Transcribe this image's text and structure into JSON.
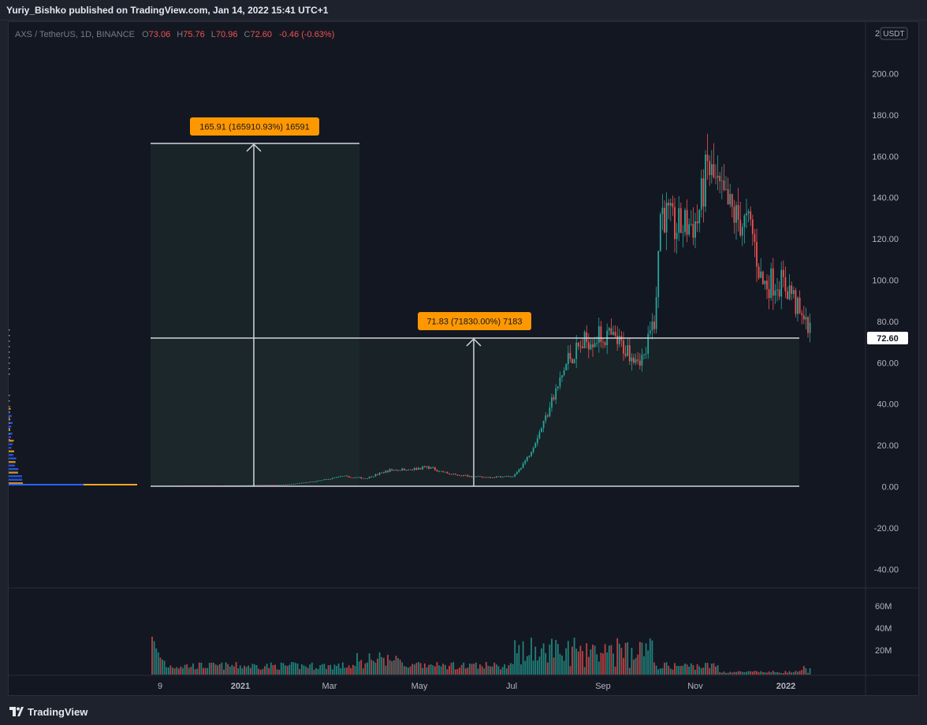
{
  "header": {
    "publish_line": "Yuriy_Bishko published on TradingView.com, Jan 14, 2022 15:41 UTC+1"
  },
  "legend": {
    "symbol": "AXS / TetherUS, 1D, BINANCE",
    "open_label": "O",
    "open": "73.06",
    "high_label": "H",
    "high": "75.76",
    "low_label": "L",
    "low": "70.96",
    "close_label": "C",
    "close": "72.60",
    "change": "-0.46 (-0.63%)"
  },
  "price_axis": {
    "currency_badge": "USDT",
    "top_clip": "2",
    "ticks": [
      "200.00",
      "180.00",
      "160.00",
      "140.00",
      "120.00",
      "100.00",
      "80.00",
      "60.00",
      "40.00",
      "20.00",
      "0.00",
      "-20.00",
      "-40.00"
    ],
    "last_price_label": "72.60"
  },
  "volume_axis": {
    "ticks": [
      "60M",
      "40M",
      "20M"
    ]
  },
  "time_axis": {
    "ticks": [
      "9",
      "2021",
      "Mar",
      "May",
      "Jul",
      "Sep",
      "Nov",
      "2022"
    ]
  },
  "measure_tools": [
    {
      "label": "165.91 (165910.93%) 16591",
      "color": "#ff9800"
    },
    {
      "label": "71.83 (71830.00%) 7183",
      "color": "#ff9800"
    }
  ],
  "colors": {
    "up": "#26a69a",
    "down": "#ef5350",
    "grid": "#2a2e39",
    "measure_line": "#d1d4dc",
    "label_bg": "#ff9800"
  },
  "chart_data": {
    "type": "candlestick",
    "symbol": "AXS / TetherUS",
    "interval": "1D",
    "exchange": "BINANCE",
    "ylim": [
      -48,
      208
    ],
    "y_ticks": [
      200,
      180,
      160,
      140,
      120,
      100,
      80,
      60,
      40,
      20,
      0,
      -20,
      -40
    ],
    "last": {
      "open": 73.06,
      "high": 75.76,
      "low": 70.96,
      "close": 72.6,
      "change": -0.46,
      "change_pct": -0.63
    },
    "price_path": [
      [
        "2020-11-04",
        0.3
      ],
      [
        "2020-12-01",
        0.5
      ],
      [
        "2021-01-01",
        0.6
      ],
      [
        "2021-02-01",
        1.0
      ],
      [
        "2021-02-20",
        2.5
      ],
      [
        "2021-03-10",
        5.0
      ],
      [
        "2021-03-25",
        4.0
      ],
      [
        "2021-04-10",
        8.0
      ],
      [
        "2021-04-25",
        8.5
      ],
      [
        "2021-05-05",
        9.5
      ],
      [
        "2021-05-20",
        6.0
      ],
      [
        "2021-06-10",
        4.5
      ],
      [
        "2021-07-01",
        5.0
      ],
      [
        "2021-07-10",
        14.0
      ],
      [
        "2021-07-20",
        30.0
      ],
      [
        "2021-07-28",
        44.0
      ],
      [
        "2021-08-06",
        62.0
      ],
      [
        "2021-08-20",
        72.0
      ],
      [
        "2021-09-01",
        73.0
      ],
      [
        "2021-09-15",
        66.0
      ],
      [
        "2021-09-25",
        62.0
      ],
      [
        "2021-10-02",
        82.0
      ],
      [
        "2021-10-06",
        135.0
      ],
      [
        "2021-10-15",
        125.0
      ],
      [
        "2021-10-30",
        128.0
      ],
      [
        "2021-11-06",
        155.0
      ],
      [
        "2021-11-15",
        140.0
      ],
      [
        "2021-11-25",
        130.0
      ],
      [
        "2021-12-05",
        125.0
      ],
      [
        "2021-12-12",
        98.0
      ],
      [
        "2021-12-22",
        100.0
      ],
      [
        "2021-12-31",
        95.0
      ],
      [
        "2022-01-07",
        80.0
      ],
      [
        "2022-01-14",
        72.6
      ]
    ],
    "measurements": [
      {
        "change": 165.91,
        "change_pct": 165910.93,
        "ticks": 16591
      },
      {
        "change": 71.83,
        "change_pct": 71830.0,
        "ticks": 7183
      }
    ],
    "volume_ticks": [
      "60M",
      "40M",
      "20M"
    ],
    "volume_profile": "visible-left"
  }
}
